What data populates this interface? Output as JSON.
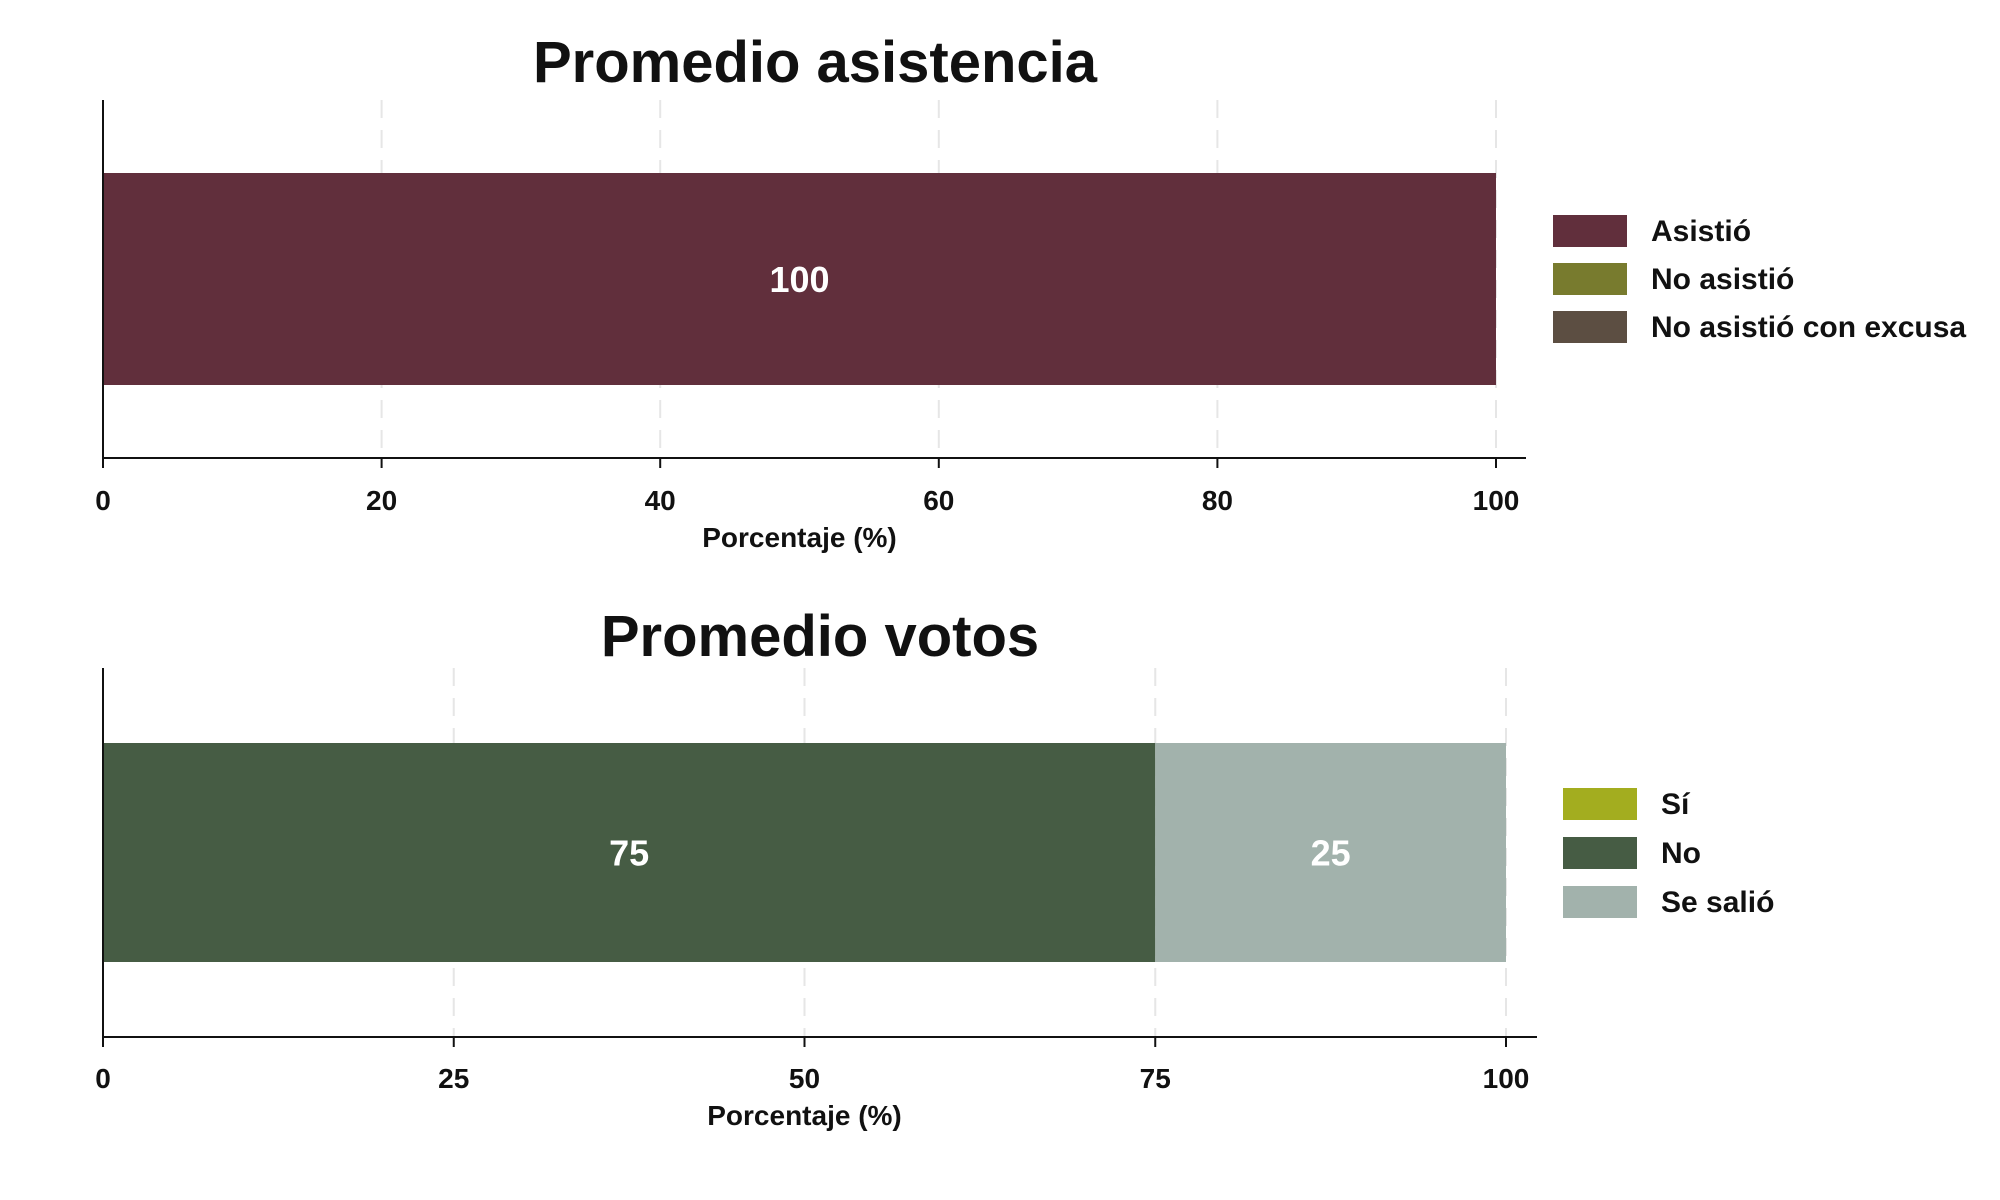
{
  "chart_data": [
    {
      "type": "bar",
      "orientation": "horizontal",
      "stacked": true,
      "title": "Promedio asistencia",
      "xlabel": "Porcentaje (%)",
      "xlim": [
        0,
        100
      ],
      "xticks": [
        "0",
        "20",
        "40",
        "60",
        "80",
        "100"
      ],
      "grid": true,
      "legend_position": "right",
      "series": [
        {
          "name": "Asistió",
          "value": 100,
          "color": "#612f3c"
        },
        {
          "name": "No asistió",
          "value": 0,
          "color": "#787b2e"
        },
        {
          "name": "No asistió con excusa",
          "value": 0,
          "color": "#5c4e42"
        }
      ]
    },
    {
      "type": "bar",
      "orientation": "horizontal",
      "stacked": true,
      "title": "Promedio votos",
      "xlabel": "Porcentaje (%)",
      "xlim": [
        0,
        100
      ],
      "xticks": [
        "0",
        "25",
        "50",
        "75",
        "100"
      ],
      "grid": true,
      "legend_position": "right",
      "series": [
        {
          "name": "Sí",
          "value": 0,
          "color": "#a3ad1f"
        },
        {
          "name": "No",
          "value": 75,
          "color": "#465c44"
        },
        {
          "name": "Se salió",
          "value": 25,
          "color": "#a2b2ac"
        }
      ]
    }
  ]
}
